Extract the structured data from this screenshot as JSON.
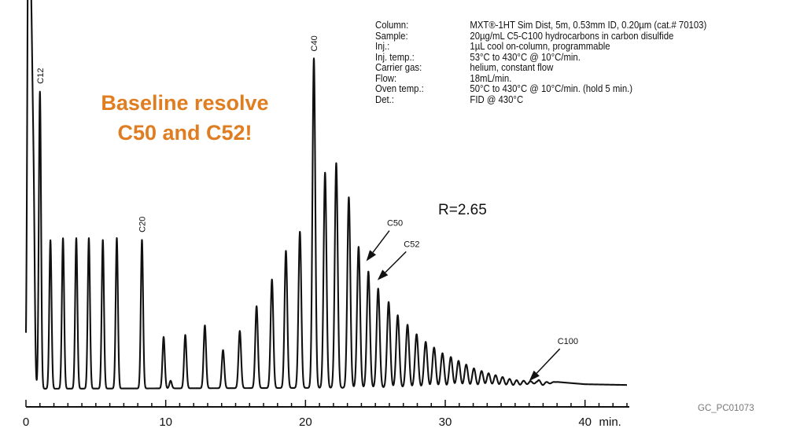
{
  "headline": [
    "Baseline resolve",
    "C50 and C52!"
  ],
  "resolution_label": "R=2.65",
  "conditions": [
    {
      "key": "Column:",
      "value": "MXT®-1HT Sim Dist, 5m, 0.53mm ID, 0.20µm (cat.# 70103)"
    },
    {
      "key": "Sample:",
      "value": "20µg/mL C5-C100 hydrocarbons in carbon disulfide"
    },
    {
      "key": "Inj.:",
      "value": "1µL cool on-column, programmable"
    },
    {
      "key": "Inj. temp.:",
      "value": "53°C to 430°C @ 10°C/min."
    },
    {
      "key": "Carrier gas:",
      "value": "helium, constant flow"
    },
    {
      "key": "Flow:",
      "value": "18mL/min."
    },
    {
      "key": "Oven temp.:",
      "value": "50°C to 430°C @ 10°C/min. (hold 5 min.)"
    },
    {
      "key": "Det.:",
      "value": "FID @ 430°C"
    }
  ],
  "figure_code": "GC_PC01073",
  "chart_data": {
    "type": "line",
    "x_unit": "min.",
    "xlim": [
      0,
      43
    ],
    "x_ticks": [
      0,
      10,
      20,
      30,
      40
    ],
    "x_tick_labels": [
      "0",
      "10",
      "20",
      "30",
      "40"
    ],
    "ylim": [
      0,
      1
    ],
    "baseline_drift": [
      [
        0,
        0
      ],
      [
        35,
        0.004
      ],
      [
        36.5,
        0.012
      ],
      [
        38,
        0.018
      ],
      [
        40,
        0.012
      ],
      [
        43,
        0.01
      ]
    ],
    "peaks": [
      {
        "t": 0.15,
        "h": 0.81
      },
      {
        "t": 0.25,
        "h": 1.0
      },
      {
        "t": 0.4,
        "h": 0.72
      },
      {
        "t": 0.55,
        "h": 0.47
      },
      {
        "t": 1.0,
        "h": 0.78,
        "label": "C12"
      },
      {
        "t": 1.75,
        "h": 0.39
      },
      {
        "t": 2.65,
        "h": 0.395
      },
      {
        "t": 3.6,
        "h": 0.395
      },
      {
        "t": 4.5,
        "h": 0.395
      },
      {
        "t": 5.5,
        "h": 0.39
      },
      {
        "t": 6.5,
        "h": 0.395
      },
      {
        "t": 8.3,
        "h": 0.39,
        "label": "C20"
      },
      {
        "t": 9.85,
        "h": 0.135
      },
      {
        "t": 10.35,
        "h": 0.02
      },
      {
        "t": 11.4,
        "h": 0.14
      },
      {
        "t": 12.8,
        "h": 0.165
      },
      {
        "t": 14.1,
        "h": 0.1
      },
      {
        "t": 15.3,
        "h": 0.15
      },
      {
        "t": 16.5,
        "h": 0.215
      },
      {
        "t": 17.6,
        "h": 0.285
      },
      {
        "t": 18.6,
        "h": 0.36
      },
      {
        "t": 19.6,
        "h": 0.41
      },
      {
        "t": 20.6,
        "h": 0.865,
        "label": "C40"
      },
      {
        "t": 21.4,
        "h": 0.565
      },
      {
        "t": 22.2,
        "h": 0.59
      },
      {
        "t": 23.1,
        "h": 0.5
      },
      {
        "t": 23.8,
        "h": 0.37
      },
      {
        "t": 24.5,
        "h": 0.305,
        "label": "C50"
      },
      {
        "t": 25.2,
        "h": 0.26,
        "label": "C52"
      },
      {
        "t": 25.95,
        "h": 0.225
      },
      {
        "t": 26.6,
        "h": 0.19
      },
      {
        "t": 27.3,
        "h": 0.165
      },
      {
        "t": 27.95,
        "h": 0.14
      },
      {
        "t": 28.6,
        "h": 0.12
      },
      {
        "t": 29.2,
        "h": 0.105
      },
      {
        "t": 29.8,
        "h": 0.09
      },
      {
        "t": 30.4,
        "h": 0.08
      },
      {
        "t": 30.95,
        "h": 0.07
      },
      {
        "t": 31.5,
        "h": 0.06
      },
      {
        "t": 32.05,
        "h": 0.05
      },
      {
        "t": 32.6,
        "h": 0.043
      },
      {
        "t": 33.1,
        "h": 0.037
      },
      {
        "t": 33.6,
        "h": 0.032
      },
      {
        "t": 34.1,
        "h": 0.027
      },
      {
        "t": 34.6,
        "h": 0.022
      },
      {
        "t": 35.1,
        "h": 0.018
      },
      {
        "t": 35.6,
        "h": 0.014
      },
      {
        "t": 36.1,
        "h": 0.01,
        "label": "C100"
      },
      {
        "t": 36.6,
        "h": 0.007
      }
    ],
    "peak_widths": [
      [
        0,
        0.08
      ],
      [
        8,
        0.08
      ],
      [
        20,
        0.1
      ],
      [
        35,
        0.13
      ]
    ],
    "annotation_arrows": [
      {
        "target": "C50",
        "from": [
          26.0,
          0.415
        ],
        "to": [
          24.35,
          0.335
        ]
      },
      {
        "target": "C52",
        "from": [
          27.2,
          0.36
        ],
        "to": [
          25.15,
          0.285
        ]
      },
      {
        "target": "C100",
        "from": [
          38.2,
          0.105
        ],
        "to": [
          36.0,
          0.02
        ]
      }
    ]
  }
}
